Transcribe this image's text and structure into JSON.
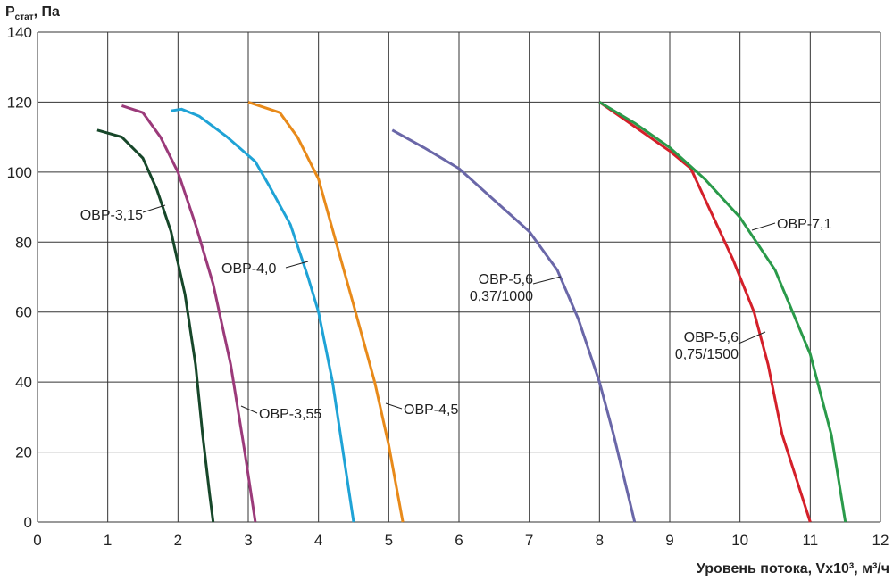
{
  "chart_data": {
    "type": "line",
    "y_label": [
      "P",
      "стат",
      ", Па"
    ],
    "x_label": "Уровень потока, Vx10³, м³/ч",
    "xlim": [
      0,
      12
    ],
    "xticks": [
      0,
      1,
      2,
      3,
      4,
      5,
      6,
      7,
      8,
      9,
      10,
      11,
      12
    ],
    "ylim": [
      0,
      140
    ],
    "yticks": [
      0,
      20,
      40,
      60,
      80,
      100,
      120,
      140
    ],
    "grid": true,
    "series": [
      {
        "name": "ОВР-3,15",
        "color": "#17472a",
        "x": [
          0.85,
          1.2,
          1.5,
          1.7,
          1.9,
          2.1,
          2.25,
          2.35,
          2.45,
          2.5
        ],
        "values": [
          112,
          110,
          104,
          95,
          83,
          65,
          45,
          25,
          8,
          0
        ]
      },
      {
        "name": "ОВР-3,55",
        "color": "#9b3a7a",
        "x": [
          1.2,
          1.5,
          1.75,
          2.0,
          2.25,
          2.5,
          2.75,
          2.95,
          3.1
        ],
        "values": [
          119,
          117,
          110,
          100,
          85,
          68,
          45,
          20,
          0
        ]
      },
      {
        "name": "ОВР-4,0",
        "color": "#1fa3d6",
        "x": [
          1.9,
          2.05,
          2.3,
          2.7,
          3.1,
          3.3,
          3.6,
          3.85,
          4.0,
          4.2,
          4.35,
          4.5
        ],
        "values": [
          117.5,
          118,
          116,
          110,
          103,
          96,
          85,
          70,
          60,
          40,
          20,
          0
        ]
      },
      {
        "name": "ОВР-4,5",
        "color": "#e88a1a",
        "x": [
          3.0,
          3.45,
          3.7,
          4.0,
          4.25,
          4.5,
          4.8,
          5.0,
          5.2
        ],
        "values": [
          120,
          117,
          110,
          98,
          80,
          62,
          40,
          22,
          0
        ]
      },
      {
        "name": [
          "ОВР-5,6",
          "0,37/1000"
        ],
        "color": "#6a67a8",
        "x": [
          5.05,
          5.5,
          6.0,
          6.5,
          7.0,
          7.4,
          7.7,
          8.0,
          8.2,
          8.5
        ],
        "values": [
          112,
          107,
          101,
          92,
          83,
          72,
          58,
          40,
          25,
          0
        ]
      },
      {
        "name": [
          "ОВР-5,6",
          "0,75/1500"
        ],
        "color": "#d4202a",
        "x": [
          8.0,
          8.5,
          9.0,
          9.3,
          9.6,
          9.9,
          10.2,
          10.4,
          10.6,
          11.0
        ],
        "values": [
          120,
          113,
          106,
          101,
          88,
          75,
          60,
          45,
          25,
          0
        ]
      },
      {
        "name": "ОВР-7,1",
        "color": "#2a9a4a",
        "x": [
          8.0,
          8.5,
          9.0,
          9.5,
          10.0,
          10.5,
          11.0,
          11.3,
          11.5
        ],
        "values": [
          120,
          114,
          107,
          98,
          87,
          72,
          48,
          25,
          0
        ]
      }
    ]
  }
}
